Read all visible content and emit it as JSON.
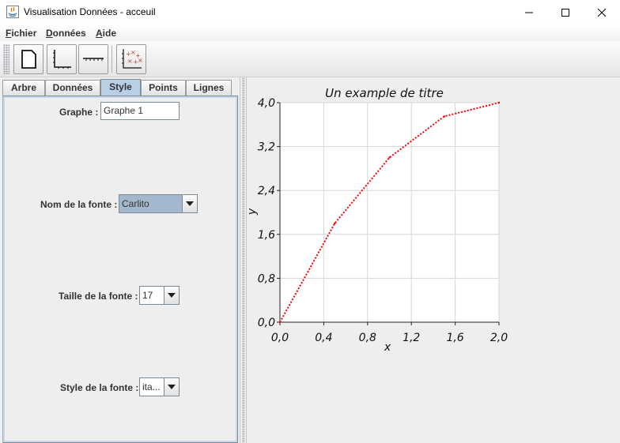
{
  "window": {
    "title": "Visualisation Données - acceuil",
    "minimize_icon": "minimize-icon",
    "maximize_icon": "maximize-icon",
    "close_icon": "close-icon"
  },
  "menu": {
    "fichier_u": "F",
    "fichier_rest": "ichier",
    "donnees_u": "D",
    "donnees_rest": "onnées",
    "aide_u": "A",
    "aide_rest": "ide"
  },
  "toolbar": {
    "buttons": [
      "new-document-icon",
      "axes-icon",
      "line-icon",
      "scatter-plot-icon"
    ]
  },
  "tabs": [
    {
      "label": "Arbre"
    },
    {
      "label": "Données"
    },
    {
      "label": "Style",
      "active": true
    },
    {
      "label": "Points"
    },
    {
      "label": "Lignes"
    }
  ],
  "style_form": {
    "graphe_label": "Graphe :",
    "graphe_value": "Graphe 1",
    "font_name_label": "Nom de la fonte :",
    "font_name_value": "Carlito",
    "font_size_label": "Taille de la fonte :",
    "font_size_value": "17",
    "font_style_label": "Style de la fonte :",
    "font_style_value": "ita..."
  },
  "chart_data": {
    "type": "line",
    "title": "Un example de titre",
    "xlabel": "x",
    "ylabel": "y",
    "xlim": [
      0.0,
      2.0
    ],
    "ylim": [
      0.0,
      4.0
    ],
    "x_ticks": [
      "0,0",
      "0,4",
      "0,8",
      "1,2",
      "1,6",
      "2,0"
    ],
    "y_ticks": [
      "0,0",
      "0,8",
      "1,6",
      "2,4",
      "3,2",
      "4,0"
    ],
    "x_tick_values": [
      0.0,
      0.4,
      0.8,
      1.2,
      1.6,
      2.0
    ],
    "y_tick_values": [
      0.0,
      0.8,
      1.6,
      2.4,
      3.2,
      4.0
    ],
    "grid": true,
    "line_style": "dotted",
    "color": "#ff0000",
    "series": [
      {
        "x": [
          0.0,
          0.5,
          1.0,
          1.5,
          2.0
        ],
        "y": [
          0.0,
          1.8,
          3.0,
          3.75,
          4.0
        ]
      }
    ]
  }
}
